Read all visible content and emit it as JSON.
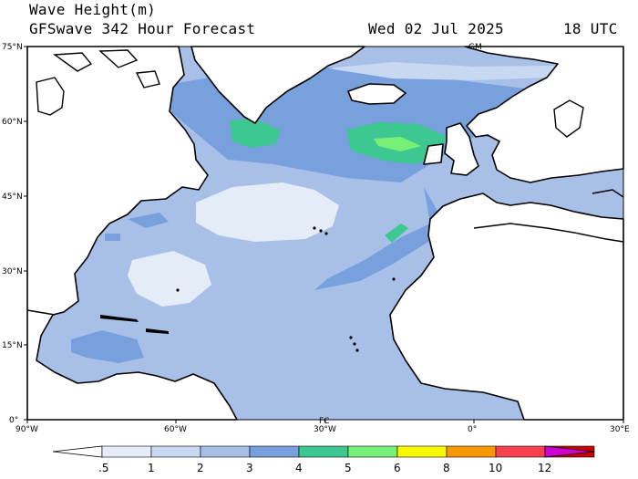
{
  "header": {
    "line1": "Wave Height(m)",
    "line2": "GFSwave 342 Hour Forecast",
    "date": "Wed 02 Jul 2025",
    "time": "18 UTC"
  },
  "map": {
    "lat_labels": [
      "75°N",
      "60°N",
      "45°N",
      "30°N",
      "15°N",
      "0°"
    ],
    "lon_labels": [
      "90°W",
      "60°W",
      "30°W",
      "0°",
      "30°E"
    ],
    "station_markers": [
      "GM",
      "FC"
    ],
    "colors": {
      "water_low": "#e4ecf8",
      "level_05_1": "#c8d8f0",
      "level_1_2": "#a8c0e8",
      "level_2_3": "#78a0dc",
      "level_3_4": "#3cc890",
      "level_4_5": "#78f078",
      "land": "#ffffff"
    }
  },
  "colorbar": {
    "labels": [
      ".5",
      "1",
      "2",
      "3",
      "4",
      "5",
      "6",
      "8",
      "10",
      "12"
    ],
    "colors": [
      "#ffffff",
      "#e4ecf8",
      "#c8d8f0",
      "#a8c0e8",
      "#78a0dc",
      "#3cc890",
      "#78f078",
      "#f8f800",
      "#f89800",
      "#f84050",
      "#c80000",
      "#d000d0"
    ]
  }
}
